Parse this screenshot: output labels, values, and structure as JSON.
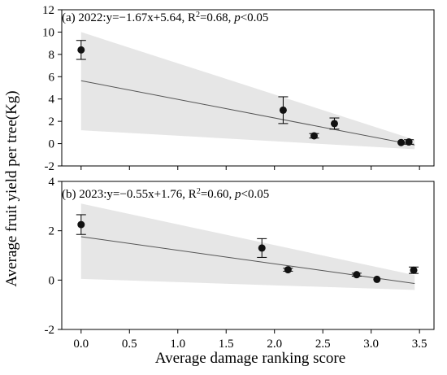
{
  "chart_data": {
    "type": "scatter",
    "xlabel": "Average damage ranking score",
    "ylabel": "Average fruit yield per tree(Kg)",
    "x_ticks": [
      "0.0",
      "0.5",
      "1.0",
      "1.5",
      "2.0",
      "2.5",
      "3.0",
      "3.5"
    ],
    "xlim": [
      -0.2,
      3.65
    ],
    "colors": {
      "points": "#111111",
      "fit_line": "#555555",
      "band": "#e6e6e6",
      "axis": "#000000"
    },
    "panels": [
      {
        "label_prefix": "(a) 2022:",
        "equation": "y=−1.67x+5.64, R",
        "r2_sup": "2",
        "r2_value": "=0.68, ",
        "p_italic": "p",
        "p_value": "<0.05",
        "ylim": [
          -2,
          12
        ],
        "y_ticks": [
          "-2",
          "0",
          "2",
          "4",
          "6",
          "8",
          "10",
          "12"
        ],
        "fit": {
          "slope": -1.67,
          "intercept": 5.64
        },
        "band": {
          "upper": [
            [
              0.0,
              10.0
            ],
            [
              3.45,
              0.35
            ]
          ],
          "lower": [
            [
              0.0,
              1.2
            ],
            [
              3.45,
              -0.5
            ]
          ]
        },
        "points": [
          {
            "x": 0.0,
            "y": 8.4,
            "err": 0.85
          },
          {
            "x": 2.09,
            "y": 3.0,
            "err": 1.2
          },
          {
            "x": 2.41,
            "y": 0.7,
            "err": 0.2
          },
          {
            "x": 2.62,
            "y": 1.8,
            "err": 0.5
          },
          {
            "x": 3.31,
            "y": 0.1,
            "err": 0.0
          },
          {
            "x": 3.39,
            "y": 0.15,
            "err": 0.2
          }
        ]
      },
      {
        "label_prefix": "(b) 2023:",
        "equation": "y=−0.55x+1.76, R",
        "r2_sup": "2",
        "r2_value": "=0.60, ",
        "p_italic": "p",
        "p_value": "<0.05",
        "ylim": [
          -2,
          4
        ],
        "y_ticks": [
          "-2",
          "0",
          "2",
          "4"
        ],
        "fit": {
          "slope": -0.55,
          "intercept": 1.76
        },
        "band": {
          "upper": [
            [
              0.0,
              3.1
            ],
            [
              3.45,
              0.2
            ]
          ],
          "lower": [
            [
              0.0,
              0.05
            ],
            [
              3.45,
              -0.4
            ]
          ]
        },
        "points": [
          {
            "x": 0.0,
            "y": 2.25,
            "err": 0.4
          },
          {
            "x": 1.87,
            "y": 1.3,
            "err": 0.38
          },
          {
            "x": 2.14,
            "y": 0.42,
            "err": 0.06
          },
          {
            "x": 2.85,
            "y": 0.22,
            "err": 0.06
          },
          {
            "x": 3.06,
            "y": 0.03,
            "err": 0.0
          },
          {
            "x": 3.44,
            "y": 0.4,
            "err": 0.13
          }
        ]
      }
    ]
  }
}
